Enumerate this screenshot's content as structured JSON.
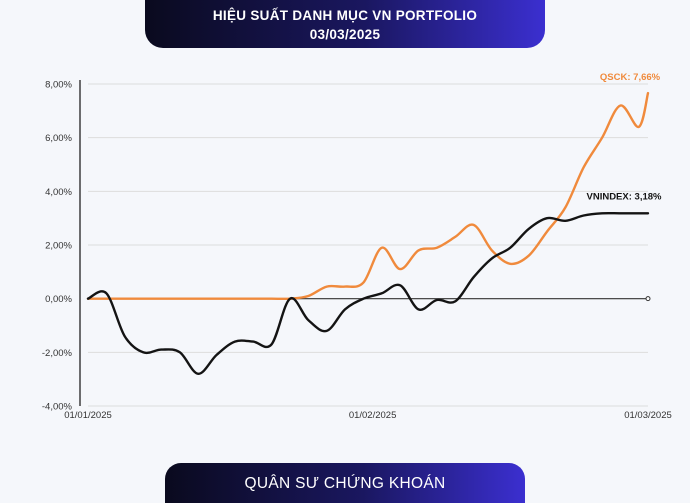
{
  "header": {
    "title_line1": "HIỆU SUẤT DANH MỤC VN PORTFOLIO",
    "title_line2": "03/03/2025"
  },
  "footer": {
    "brand": "QUÂN SƯ CHỨNG KHOÁN"
  },
  "colors": {
    "qsck": "#f08a3c",
    "vnindex": "#141414",
    "grid": "#dcdcdc",
    "header_gradient_start": "#0a0a1e",
    "header_gradient_end": "#3b2fd0"
  },
  "chart_data": {
    "type": "line",
    "title": "",
    "xlabel": "",
    "ylabel": "",
    "ylim": [
      -4,
      8
    ],
    "ytick_values": [
      -4,
      -2,
      0,
      2,
      4,
      6,
      8
    ],
    "ytick_labels": [
      "-4,00%",
      "-2,00%",
      "0,00%",
      "2,00%",
      "4,00%",
      "6,00%",
      "8,00%"
    ],
    "xtick_labels": [
      "01/01/2025",
      "01/02/2025",
      "01/03/2025"
    ],
    "xlim": [
      "2025-01-01",
      "2025-03-03"
    ],
    "grid": true,
    "series": [
      {
        "name": "QSCK",
        "label": "QSCK: 7,66%",
        "color": "#f08a3c",
        "x": [
          "2025-01-01",
          "2025-01-03",
          "2025-01-05",
          "2025-01-07",
          "2025-01-09",
          "2025-01-11",
          "2025-01-13",
          "2025-01-15",
          "2025-01-17",
          "2025-01-19",
          "2025-01-21",
          "2025-01-23",
          "2025-01-25",
          "2025-01-27",
          "2025-01-29",
          "2025-01-31",
          "2025-02-02",
          "2025-02-04",
          "2025-02-06",
          "2025-02-08",
          "2025-02-10",
          "2025-02-12",
          "2025-02-14",
          "2025-02-16",
          "2025-02-18",
          "2025-02-20",
          "2025-02-22",
          "2025-02-24",
          "2025-02-26",
          "2025-02-28",
          "2025-03-02",
          "2025-03-03"
        ],
        "y": [
          0,
          0,
          0,
          0,
          0,
          0,
          0,
          0,
          0,
          0,
          0,
          0,
          0.1,
          0.45,
          0.45,
          0.6,
          1.9,
          1.1,
          1.8,
          1.9,
          2.3,
          2.75,
          1.8,
          1.3,
          1.6,
          2.5,
          3.4,
          4.9,
          6.0,
          7.2,
          6.4,
          7.66
        ]
      },
      {
        "name": "VNINDEX",
        "label": "VNINDEX: 3,18%",
        "color": "#141414",
        "x": [
          "2025-01-01",
          "2025-01-03",
          "2025-01-05",
          "2025-01-07",
          "2025-01-09",
          "2025-01-11",
          "2025-01-13",
          "2025-01-15",
          "2025-01-17",
          "2025-01-19",
          "2025-01-21",
          "2025-01-23",
          "2025-01-25",
          "2025-01-27",
          "2025-01-29",
          "2025-01-31",
          "2025-02-02",
          "2025-02-04",
          "2025-02-06",
          "2025-02-08",
          "2025-02-10",
          "2025-02-12",
          "2025-02-14",
          "2025-02-16",
          "2025-02-18",
          "2025-02-20",
          "2025-02-22",
          "2025-02-24",
          "2025-02-26",
          "2025-02-28",
          "2025-03-02",
          "2025-03-03"
        ],
        "y": [
          0,
          0.2,
          -1.4,
          -2.0,
          -1.9,
          -2.0,
          -2.8,
          -2.1,
          -1.6,
          -1.6,
          -1.7,
          0.0,
          -0.8,
          -1.2,
          -0.4,
          0.0,
          0.2,
          0.5,
          -0.4,
          -0.05,
          -0.1,
          0.8,
          1.5,
          1.9,
          2.6,
          3.0,
          2.9,
          3.1,
          3.18,
          3.18,
          3.18,
          3.18
        ]
      }
    ]
  }
}
